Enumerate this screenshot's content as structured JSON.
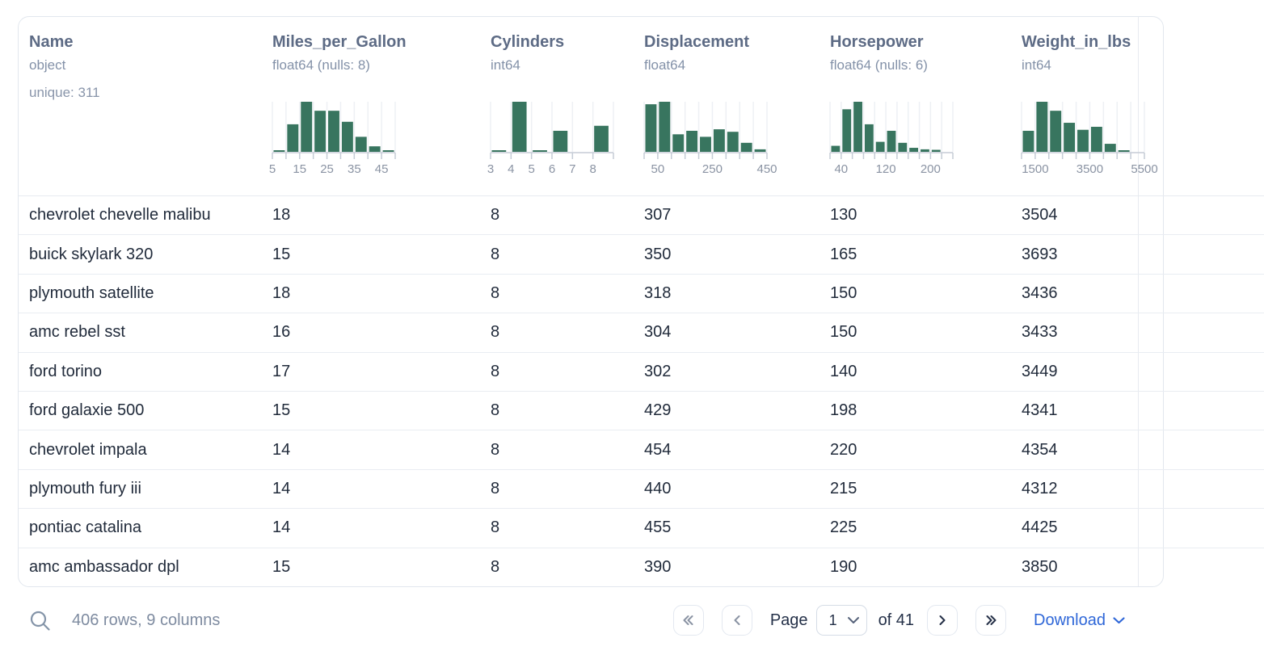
{
  "table": {
    "columns": [
      {
        "name": "Name",
        "type": "object",
        "extra": "unique: 311"
      },
      {
        "name": "Miles_per_Gallon",
        "type": "float64 (nulls: 8)",
        "histogram": {
          "bins": [
            0.03,
            0.55,
            1,
            0.82,
            0.82,
            0.6,
            0.3,
            0.11,
            0.03
          ],
          "tick_labels": [
            {
              "i": 0,
              "t": "5"
            },
            {
              "i": 2,
              "t": "15"
            },
            {
              "i": 4,
              "t": "25"
            },
            {
              "i": 6,
              "t": "35"
            },
            {
              "i": 8,
              "t": "45"
            }
          ]
        }
      },
      {
        "name": "Cylinders",
        "type": "int64",
        "histogram": {
          "bins": [
            0.03,
            1,
            0.02,
            0.42,
            0,
            0.52
          ],
          "tick_labels": [
            {
              "i": 0,
              "t": "3"
            },
            {
              "i": 1,
              "t": "4"
            },
            {
              "i": 2,
              "t": "5"
            },
            {
              "i": 3,
              "t": "6"
            },
            {
              "i": 4,
              "t": "7"
            },
            {
              "i": 5,
              "t": "8"
            }
          ]
        }
      },
      {
        "name": "Displacement",
        "type": "float64",
        "histogram": {
          "bins": [
            0.95,
            1,
            0.35,
            0.42,
            0.3,
            0.45,
            0.4,
            0.18,
            0.05
          ],
          "tick_labels": [
            {
              "i": 1,
              "t": "50"
            },
            {
              "i": 5,
              "t": "250"
            },
            {
              "i": 9,
              "t": "450"
            }
          ]
        }
      },
      {
        "name": "Horsepower",
        "type": "float64 (nulls: 6)",
        "histogram": {
          "bins": [
            0.12,
            0.85,
            1,
            0.55,
            0.2,
            0.42,
            0.18,
            0.08,
            0.05,
            0.04,
            0
          ],
          "tick_labels": [
            {
              "i": 1,
              "t": "40"
            },
            {
              "i": 5,
              "t": "120"
            },
            {
              "i": 9,
              "t": "200"
            }
          ]
        }
      },
      {
        "name": "Weight_in_lbs",
        "type": "int64",
        "histogram": {
          "bins": [
            0.42,
            1,
            0.82,
            0.58,
            0.44,
            0.5,
            0.16,
            0.02,
            0
          ],
          "tick_labels": [
            {
              "i": 1,
              "t": "1500"
            },
            {
              "i": 5,
              "t": "3500"
            },
            {
              "i": 9,
              "t": "5500"
            }
          ]
        }
      }
    ],
    "rows": [
      [
        "chevrolet chevelle malibu",
        "18",
        "8",
        "307",
        "130",
        "3504"
      ],
      [
        "buick skylark 320",
        "15",
        "8",
        "350",
        "165",
        "3693"
      ],
      [
        "plymouth satellite",
        "18",
        "8",
        "318",
        "150",
        "3436"
      ],
      [
        "amc rebel sst",
        "16",
        "8",
        "304",
        "150",
        "3433"
      ],
      [
        "ford torino",
        "17",
        "8",
        "302",
        "140",
        "3449"
      ],
      [
        "ford galaxie 500",
        "15",
        "8",
        "429",
        "198",
        "4341"
      ],
      [
        "chevrolet impala",
        "14",
        "8",
        "454",
        "220",
        "4354"
      ],
      [
        "plymouth fury iii",
        "14",
        "8",
        "440",
        "215",
        "4312"
      ],
      [
        "pontiac catalina",
        "14",
        "8",
        "455",
        "225",
        "4425"
      ],
      [
        "amc ambassador dpl",
        "15",
        "8",
        "390",
        "190",
        "3850"
      ]
    ]
  },
  "footer": {
    "summary": "406 rows, 9 columns",
    "page_label": "Page",
    "page_value": "1",
    "of_label": "of 41",
    "download_label": "Download"
  },
  "colors": {
    "bar": "#38755f",
    "gridline": "#edf0f4",
    "axis": "#c5ccd6",
    "tick_label": "#8a93a3",
    "accent_blue": "#2f67d8"
  }
}
